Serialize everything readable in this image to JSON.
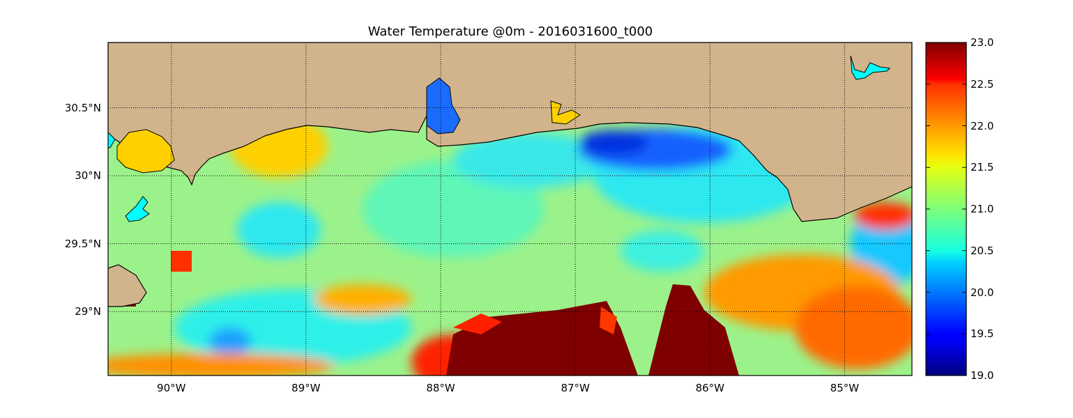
{
  "title": "Water Temperature @0m - 2016031600_t000",
  "map": {
    "x_ticks": [
      {
        "lon": -90,
        "label": "90°W"
      },
      {
        "lon": -89,
        "label": "89°W"
      },
      {
        "lon": -88,
        "label": "88°W"
      },
      {
        "lon": -87,
        "label": "87°W"
      },
      {
        "lon": -86,
        "label": "86°W"
      },
      {
        "lon": -85,
        "label": "85°W"
      }
    ],
    "y_ticks": [
      {
        "lat": 30.5,
        "label": "30.5°N"
      },
      {
        "lat": 30.0,
        "label": "30°N"
      },
      {
        "lat": 29.5,
        "label": "29.5°N"
      },
      {
        "lat": 29.0,
        "label": "29°N"
      }
    ],
    "lon_range": [
      -90.47,
      -84.5
    ],
    "lat_range": [
      28.53,
      30.98
    ],
    "land_color": "#d2b48c",
    "lake_color": "#00ffff",
    "grid": true
  },
  "colorbar": {
    "ticks": [
      "23.0",
      "22.5",
      "22.0",
      "21.5",
      "21.0",
      "20.5",
      "20.0",
      "19.5",
      "19.0"
    ],
    "vmin": 19.0,
    "vmax": 23.0,
    "colormap": "jet"
  }
}
